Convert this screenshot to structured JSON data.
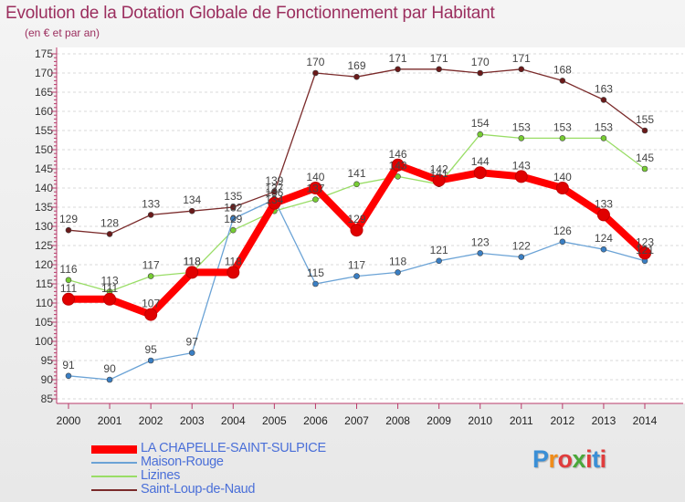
{
  "header": {
    "title": "Evolution de la Dotation Globale de Fonctionnement par Habitant",
    "subtitle": "(en € et par an)"
  },
  "brand": {
    "letters": [
      "P",
      "r",
      "o",
      "x",
      "i",
      "t",
      "i"
    ],
    "colors": [
      "#3a8fd6",
      "#f08c1a",
      "#e03c3c",
      "#4aa83a",
      "#e03c3c",
      "#3a8fd6",
      "#e03c3c"
    ]
  },
  "chart_data": {
    "type": "line",
    "title": "Evolution de la Dotation Globale de Fonctionnement par Habitant",
    "subtitle": "(en € et par an)",
    "xlabel": "",
    "ylabel": "",
    "x": [
      "2000",
      "2001",
      "2002",
      "2003",
      "2004",
      "2005",
      "2006",
      "2007",
      "2008",
      "2009",
      "2010",
      "2011",
      "2012",
      "2013",
      "2014"
    ],
    "ylim": [
      85,
      175
    ],
    "yticks": [
      "85",
      "90",
      "95",
      "100",
      "105",
      "110",
      "115",
      "120",
      "125",
      "130",
      "135",
      "140",
      "145",
      "150",
      "155",
      "160",
      "165",
      "170",
      "175"
    ],
    "grid": "horizontal dashed",
    "legend_position": "bottom-left",
    "series": [
      {
        "name": "LA CHAPELLE-SAINT-SULPICE",
        "color": "#ff0000",
        "marker": "#e00000",
        "width": "thick",
        "values": [
          111,
          111,
          107,
          118,
          118,
          136,
          140,
          129,
          146,
          142,
          144,
          143,
          140,
          133,
          123
        ]
      },
      {
        "name": "Maison-Rouge",
        "color": "#6ba3d6",
        "marker": "#3a7fc4",
        "width": "thin",
        "values": [
          91,
          90,
          95,
          97,
          132,
          137,
          115,
          117,
          118,
          121,
          123,
          122,
          126,
          124,
          121
        ]
      },
      {
        "name": "Lizines",
        "color": "#99dd66",
        "marker": "#77cc33",
        "width": "thin",
        "values": [
          116,
          113,
          117,
          118,
          129,
          134,
          137,
          141,
          143,
          141,
          154,
          153,
          153,
          153,
          145
        ]
      },
      {
        "name": "Saint-Loup-de-Naud",
        "color": "#7a2a2a",
        "marker": "#6a1a1a",
        "width": "thin",
        "values": [
          129,
          128,
          133,
          134,
          135,
          139,
          170,
          169,
          171,
          171,
          170,
          171,
          168,
          163,
          155
        ]
      }
    ],
    "data_labels": [
      {
        "series": "LA CHAPELLE-SAINT-SULPICE",
        "labels": [
          "111",
          "111",
          "107",
          "118",
          "118",
          "136",
          "140",
          "129",
          "146",
          "142",
          "144",
          "143",
          "140",
          "133",
          "123"
        ]
      },
      {
        "series": "Maison-Rouge",
        "labels": [
          "91",
          "90",
          "95",
          "97",
          "132",
          "137",
          "115",
          "117",
          "118",
          "121",
          "123",
          "122",
          "126",
          "124",
          "121"
        ]
      },
      {
        "series": "Lizines",
        "labels": [
          "116",
          "113",
          "117",
          "118",
          "129",
          "134",
          "137",
          "141",
          "143",
          "141",
          "154",
          "153",
          "153",
          "153",
          "145"
        ]
      },
      {
        "series": "Saint-Loup-de-Naud",
        "labels": [
          "129",
          "128",
          "133",
          "134",
          "135",
          "139",
          "170",
          "169",
          "171",
          "171",
          "170",
          "171",
          "168",
          "163",
          "155"
        ]
      }
    ]
  }
}
